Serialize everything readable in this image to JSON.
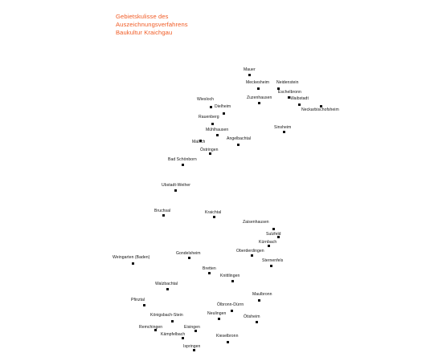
{
  "title_lines": [
    "Gebietskulisse des",
    "Auszeichnungsverfahrens",
    "Baukultur Kraichgau"
  ],
  "colors": {
    "title": "#f05a23",
    "text": "#111111",
    "background": "#ffffff"
  },
  "places": [
    "Mauer",
    "Meckesheim",
    "Neidenstein",
    "Eschelbronn",
    "Zuzenhausen",
    "Waibstadt",
    "Neckarbischofsheim",
    "Wiesloch",
    "Dielheim",
    "Rauenberg",
    "Sinsheim",
    "Mühlhausen",
    "Malsch",
    "Angelbachtal",
    "Östringen",
    "Bad Schönborn",
    "Ubstadt-Weiher",
    "Bruchsal",
    "Kraichtal",
    "Zaisenhausen",
    "Sulzfeld",
    "Kürnbach",
    "Oberderdingen",
    "Sternenfels",
    "Weingarten (Baden)",
    "Gondelsheim",
    "Bretten",
    "Knittlingen",
    "Walzbachtal",
    "Maulbronn",
    "Pfinztal",
    "Ölbronn-Dürrn",
    "Königsbach-Stein",
    "Neulingen",
    "Ötisheim",
    "Remchingen",
    "Eisingen",
    "Kämpfelbach",
    "Kieselbronn",
    "Ispringen"
  ]
}
